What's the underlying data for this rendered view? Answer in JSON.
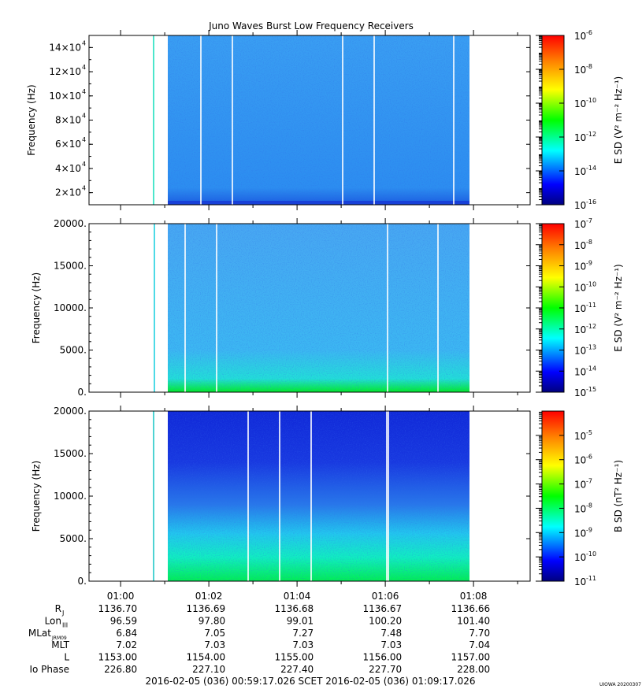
{
  "chart_data": {
    "title": "Juno Waves Burst Low Frequency Receivers",
    "time_ticks": [
      "01:00",
      "01:02",
      "01:04",
      "01:06",
      "01:08"
    ],
    "panels": [
      {
        "type": "heatmap",
        "ylabel": "Frequency (Hz)",
        "ylim": [
          10000,
          150000
        ],
        "yticks": [
          {
            "value": 20000,
            "base": "2×10",
            "exp": "4"
          },
          {
            "value": 40000,
            "base": "4×10",
            "exp": "4"
          },
          {
            "value": 60000,
            "base": "6×10",
            "exp": "4"
          },
          {
            "value": 80000,
            "base": "8×10",
            "exp": "4"
          },
          {
            "value": 100000,
            "base": "10×10",
            "exp": "4"
          },
          {
            "value": 120000,
            "base": "12×10",
            "exp": "4"
          },
          {
            "value": 140000,
            "base": "14×10",
            "exp": "4"
          }
        ],
        "colorbar": {
          "label": "E SD (V² m⁻² Hz⁻¹)",
          "scale": "log",
          "range": [
            -16,
            -6
          ],
          "tick_exps": [
            "-6",
            "-8",
            "-10",
            "-12",
            "-14",
            "-16"
          ]
        }
      },
      {
        "type": "heatmap",
        "ylabel": "Frequency (Hz)",
        "ylim": [
          0,
          20000
        ],
        "yticks": [
          {
            "value": 0,
            "label": "0."
          },
          {
            "value": 5000,
            "label": "5000."
          },
          {
            "value": 10000,
            "label": "10000."
          },
          {
            "value": 15000,
            "label": "15000."
          },
          {
            "value": 20000,
            "label": "20000."
          }
        ],
        "colorbar": {
          "label": "E SD (V² m⁻² Hz⁻¹)",
          "scale": "log",
          "range": [
            -15,
            -7
          ],
          "tick_exps": [
            "-7",
            "-8",
            "-9",
            "-10",
            "-11",
            "-12",
            "-13",
            "-14",
            "-15"
          ]
        }
      },
      {
        "type": "heatmap",
        "ylabel": "Frequency (Hz)",
        "ylim": [
          0,
          20000
        ],
        "yticks": [
          {
            "value": 0,
            "label": "0."
          },
          {
            "value": 5000,
            "label": "5000."
          },
          {
            "value": 10000,
            "label": "10000."
          },
          {
            "value": 15000,
            "label": "15000."
          },
          {
            "value": 20000,
            "label": "20000."
          }
        ],
        "colorbar": {
          "label": "B SD (nT² Hz⁻¹)",
          "scale": "log",
          "range": [
            -11,
            -4
          ],
          "tick_exps": [
            "-5",
            "-6",
            "-7",
            "-8",
            "-9",
            "-10",
            "-11"
          ]
        }
      }
    ],
    "ephemeris": [
      {
        "label": "R",
        "sub": "J",
        "values": [
          "1136.70",
          "1136.69",
          "1136.68",
          "1136.67",
          "1136.66"
        ]
      },
      {
        "label": "Lon",
        "sub": "III",
        "values": [
          "96.59",
          "97.80",
          "99.01",
          "100.20",
          "101.40"
        ]
      },
      {
        "label": "MLat",
        "sub": "JRM09",
        "values": [
          "6.84",
          "7.05",
          "7.27",
          "7.48",
          "7.70"
        ]
      },
      {
        "label": "MLT",
        "sub": "",
        "values": [
          "7.02",
          "7.03",
          "7.03",
          "7.03",
          "7.04"
        ]
      },
      {
        "label": "L",
        "sub": "",
        "values": [
          "1153.00",
          "1154.00",
          "1155.00",
          "1156.00",
          "1157.00"
        ]
      },
      {
        "label": "Io Phase",
        "sub": "",
        "values": [
          "226.80",
          "227.10",
          "227.40",
          "227.70",
          "228.00"
        ]
      }
    ],
    "time_range_text": "2016-02-05 (036) 00:59:17.026    SCET    2016-02-05 (036) 01:09:17.026",
    "stamp": "UIOWA 20200307"
  }
}
